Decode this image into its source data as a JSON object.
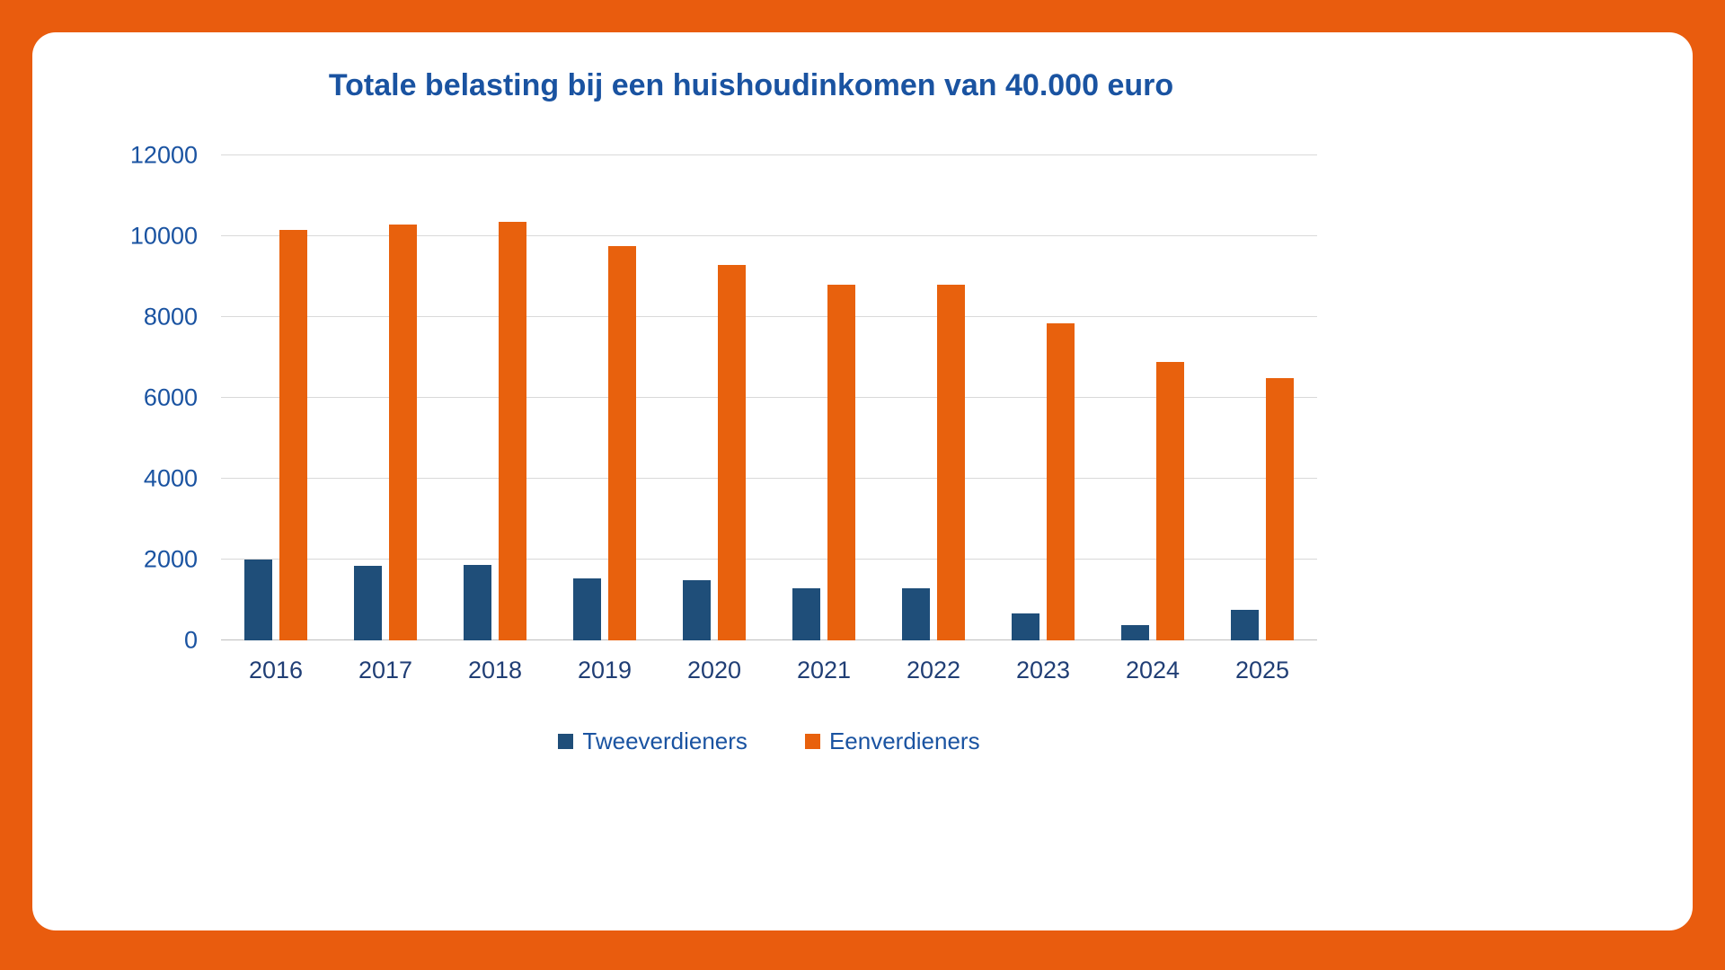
{
  "colors": {
    "frame_orange": "#E95C0E",
    "card_white": "#FFFFFF",
    "title_blue": "#1A53A1",
    "axis_label_blue": "#203E75",
    "gridline_gray": "#D9D9D9"
  },
  "chart_data": {
    "type": "bar",
    "title": "Totale belasting bij een huishoudinkomen van 40.000 euro",
    "categories": [
      "2016",
      "2017",
      "2018",
      "2019",
      "2020",
      "2021",
      "2022",
      "2023",
      "2024",
      "2025"
    ],
    "series": [
      {
        "name": "Tweeverdieners",
        "color": "#1F4E79",
        "values": [
          2000,
          1850,
          1870,
          1530,
          1480,
          1290,
          1290,
          660,
          380,
          760
        ]
      },
      {
        "name": "Eenverdieners",
        "color": "#E8610D",
        "values": [
          10150,
          10300,
          10350,
          9750,
          9300,
          8800,
          8800,
          7850,
          6900,
          6500
        ]
      }
    ],
    "ylim": [
      0,
      12000
    ],
    "yticks": [
      0,
      2000,
      4000,
      6000,
      8000,
      10000,
      12000
    ],
    "xlabel": "",
    "ylabel": "",
    "grid": "horizontal",
    "legend_position": "bottom"
  }
}
